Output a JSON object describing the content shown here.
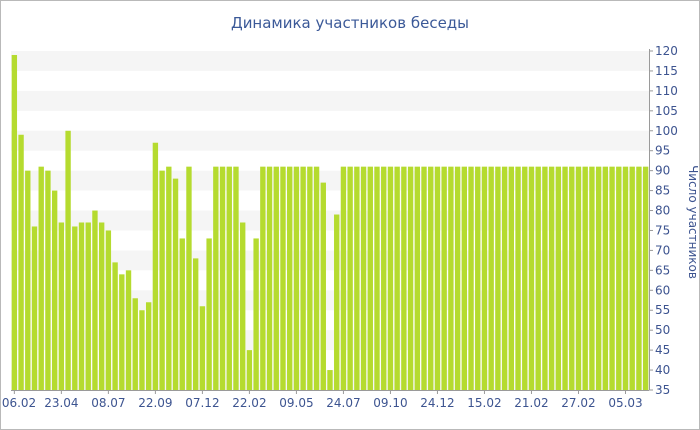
{
  "chart_data": {
    "type": "bar",
    "title": "Динамика участников беседы",
    "xlabel": "",
    "ylabel": "Число участников",
    "ylim": [
      35,
      120
    ],
    "y_ticks": [
      35,
      40,
      45,
      50,
      55,
      60,
      65,
      70,
      75,
      80,
      85,
      90,
      95,
      100,
      105,
      110,
      115,
      120
    ],
    "x_tick_labels": [
      {
        "index": 0,
        "label": "06.02"
      },
      {
        "index": 7,
        "label": "23.04"
      },
      {
        "index": 14,
        "label": "08.07"
      },
      {
        "index": 21,
        "label": "22.09"
      },
      {
        "index": 28,
        "label": "07.12"
      },
      {
        "index": 35,
        "label": "22.02"
      },
      {
        "index": 42,
        "label": "09.05"
      },
      {
        "index": 49,
        "label": "24.07"
      },
      {
        "index": 56,
        "label": "09.10"
      },
      {
        "index": 63,
        "label": "24.12"
      },
      {
        "index": 70,
        "label": "15.02"
      },
      {
        "index": 77,
        "label": "21.02"
      },
      {
        "index": 84,
        "label": "27.02"
      },
      {
        "index": 91,
        "label": "05.03"
      }
    ],
    "values": [
      119,
      99,
      90,
      76,
      91,
      90,
      85,
      77,
      100,
      76,
      77,
      77,
      80,
      77,
      75,
      67,
      64,
      65,
      58,
      55,
      57,
      97,
      90,
      91,
      88,
      73,
      91,
      68,
      56,
      73,
      91,
      91,
      91,
      91,
      77,
      45,
      73,
      91,
      91,
      91,
      91,
      91,
      91,
      91,
      91,
      91,
      87,
      40,
      79,
      91,
      91,
      91,
      91,
      91,
      91,
      91,
      91,
      91,
      91,
      91,
      91,
      91,
      91,
      91,
      91,
      91,
      91,
      91,
      91,
      91,
      91,
      91,
      91,
      91,
      91,
      91,
      91,
      91,
      91,
      91,
      91,
      91,
      91,
      91,
      91,
      91,
      91,
      91,
      91,
      91,
      91,
      91,
      91,
      91,
      91
    ],
    "bar_color": "#b5db2f",
    "band_color": "#f5f5f5",
    "text_color": "#3d5490",
    "grid": false,
    "legend": "none",
    "y_axis_position": "right"
  }
}
